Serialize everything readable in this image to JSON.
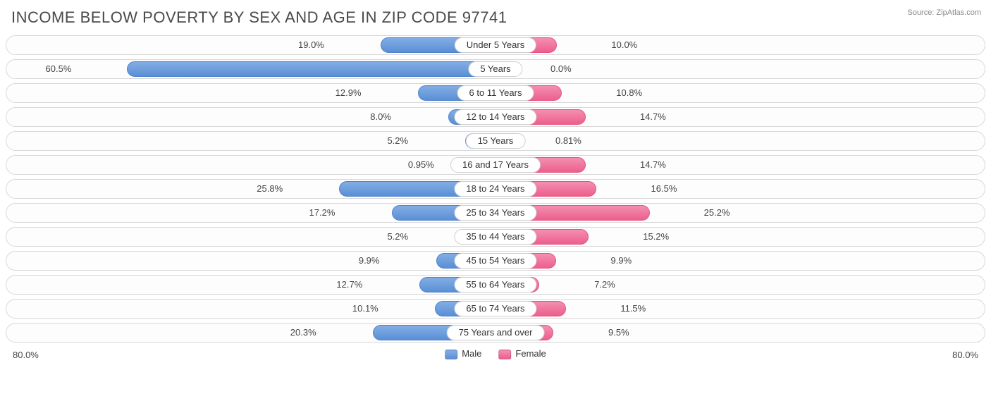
{
  "title": "INCOME BELOW POVERTY BY SEX AND AGE IN ZIP CODE 97741",
  "source": "Source: ZipAtlas.com",
  "chart": {
    "type": "population-pyramid",
    "axis_max": 80.0,
    "axis_label_left": "80.0%",
    "axis_label_right": "80.0%",
    "male_color": "#6b9bdc",
    "female_color": "#ef6f98",
    "row_border_color": "#d8d8d8",
    "background_color": "#ffffff",
    "label_fontsize": 13,
    "title_fontsize": 22,
    "rows": [
      {
        "category": "Under 5 Years",
        "male": 19.0,
        "male_label": "19.0%",
        "female": 10.0,
        "female_label": "10.0%"
      },
      {
        "category": "5 Years",
        "male": 60.5,
        "male_label": "60.5%",
        "female": 0.0,
        "female_label": "0.0%"
      },
      {
        "category": "6 to 11 Years",
        "male": 12.9,
        "male_label": "12.9%",
        "female": 10.8,
        "female_label": "10.8%"
      },
      {
        "category": "12 to 14 Years",
        "male": 8.0,
        "male_label": "8.0%",
        "female": 14.7,
        "female_label": "14.7%"
      },
      {
        "category": "15 Years",
        "male": 5.2,
        "male_label": "5.2%",
        "female": 0.81,
        "female_label": "0.81%"
      },
      {
        "category": "16 and 17 Years",
        "male": 0.95,
        "male_label": "0.95%",
        "female": 14.7,
        "female_label": "14.7%"
      },
      {
        "category": "18 to 24 Years",
        "male": 25.8,
        "male_label": "25.8%",
        "female": 16.5,
        "female_label": "16.5%"
      },
      {
        "category": "25 to 34 Years",
        "male": 17.2,
        "male_label": "17.2%",
        "female": 25.2,
        "female_label": "25.2%"
      },
      {
        "category": "35 to 44 Years",
        "male": 5.2,
        "male_label": "5.2%",
        "female": 15.2,
        "female_label": "15.2%"
      },
      {
        "category": "45 to 54 Years",
        "male": 9.9,
        "male_label": "9.9%",
        "female": 9.9,
        "female_label": "9.9%"
      },
      {
        "category": "55 to 64 Years",
        "male": 12.7,
        "male_label": "12.7%",
        "female": 7.2,
        "female_label": "7.2%"
      },
      {
        "category": "65 to 74 Years",
        "male": 10.1,
        "male_label": "10.1%",
        "female": 11.5,
        "female_label": "11.5%"
      },
      {
        "category": "75 Years and over",
        "male": 20.3,
        "male_label": "20.3%",
        "female": 9.5,
        "female_label": "9.5%"
      }
    ]
  },
  "legend": {
    "male": "Male",
    "female": "Female"
  }
}
